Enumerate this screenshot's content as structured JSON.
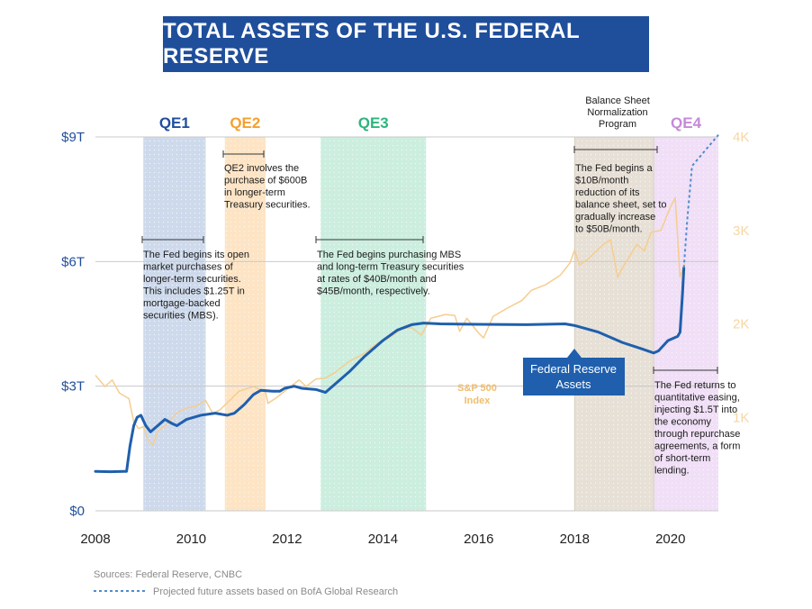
{
  "title": "TOTAL ASSETS OF THE U.S. FEDERAL RESERVE",
  "chart_data": {
    "type": "line",
    "xlim": [
      2008,
      2021
    ],
    "y_left_lim": [
      0,
      9
    ],
    "y_right_lim": [
      0,
      4000
    ],
    "x_ticks": [
      {
        "v": 2008,
        "label": "2008"
      },
      {
        "v": 2010,
        "label": "2010"
      },
      {
        "v": 2012,
        "label": "2012"
      },
      {
        "v": 2014,
        "label": "2014"
      },
      {
        "v": 2016,
        "label": "2016"
      },
      {
        "v": 2018,
        "label": "2018"
      },
      {
        "v": 2020,
        "label": "2020"
      }
    ],
    "y_left_ticks": [
      {
        "v": 0,
        "label": "$0"
      },
      {
        "v": 3,
        "label": "$3T"
      },
      {
        "v": 6,
        "label": "$6T"
      },
      {
        "v": 9,
        "label": "$9T"
      }
    ],
    "y_right_ticks": [
      {
        "v": 1000,
        "label": "1K"
      },
      {
        "v": 2000,
        "label": "2K"
      },
      {
        "v": 3000,
        "label": "3K"
      },
      {
        "v": 4000,
        "label": "4K"
      }
    ],
    "grid": "horizontal",
    "bands": [
      {
        "label": "QE1",
        "start": 2009.0,
        "end": 2010.3,
        "color": "#c9d6ea",
        "text_color": "#1f4e9b"
      },
      {
        "label": "QE2",
        "start": 2010.7,
        "end": 2011.55,
        "color": "#fde1bf",
        "text_color": "#f5a030"
      },
      {
        "label": "QE3",
        "start": 2012.7,
        "end": 2014.9,
        "color": "#c7ecdc",
        "text_color": "#2cb57e"
      },
      {
        "label": "",
        "start": 2018.0,
        "end": 2019.65,
        "color": "#e4ddd2",
        "text_color": "#9b8e7e"
      },
      {
        "label": "QE4",
        "start": 2019.65,
        "end": 2021.0,
        "color": "#eedcf5",
        "text_color": "#c48ad8"
      }
    ],
    "series": [
      {
        "name": "Federal Reserve Assets",
        "axis": "left",
        "color": "#1f5fad",
        "points": [
          [
            2008.0,
            0.95
          ],
          [
            2008.3,
            0.94
          ],
          [
            2008.6,
            0.95
          ],
          [
            2008.65,
            0.95
          ],
          [
            2008.72,
            1.55
          ],
          [
            2008.8,
            2.05
          ],
          [
            2008.87,
            2.25
          ],
          [
            2008.95,
            2.3
          ],
          [
            2009.05,
            2.05
          ],
          [
            2009.15,
            1.9
          ],
          [
            2009.3,
            2.05
          ],
          [
            2009.45,
            2.2
          ],
          [
            2009.6,
            2.1
          ],
          [
            2009.7,
            2.05
          ],
          [
            2009.9,
            2.2
          ],
          [
            2010.2,
            2.3
          ],
          [
            2010.5,
            2.35
          ],
          [
            2010.75,
            2.3
          ],
          [
            2010.9,
            2.35
          ],
          [
            2011.1,
            2.55
          ],
          [
            2011.3,
            2.8
          ],
          [
            2011.45,
            2.9
          ],
          [
            2011.7,
            2.88
          ],
          [
            2011.85,
            2.88
          ],
          [
            2011.95,
            2.95
          ],
          [
            2012.15,
            3.0
          ],
          [
            2012.3,
            2.95
          ],
          [
            2012.6,
            2.92
          ],
          [
            2012.8,
            2.85
          ],
          [
            2013.0,
            3.05
          ],
          [
            2013.3,
            3.35
          ],
          [
            2013.6,
            3.7
          ],
          [
            2014.0,
            4.1
          ],
          [
            2014.3,
            4.35
          ],
          [
            2014.6,
            4.48
          ],
          [
            2014.85,
            4.52
          ],
          [
            2015.2,
            4.5
          ],
          [
            2016.0,
            4.49
          ],
          [
            2017.0,
            4.48
          ],
          [
            2017.8,
            4.5
          ],
          [
            2018.0,
            4.46
          ],
          [
            2018.5,
            4.3
          ],
          [
            2019.0,
            4.05
          ],
          [
            2019.4,
            3.9
          ],
          [
            2019.65,
            3.8
          ],
          [
            2019.75,
            3.85
          ],
          [
            2019.95,
            4.1
          ],
          [
            2020.15,
            4.2
          ],
          [
            2020.2,
            4.3
          ],
          [
            2020.25,
            5.2
          ],
          [
            2020.28,
            5.85
          ]
        ]
      },
      {
        "name": "S&P 500 Index",
        "axis": "right",
        "color": "#f6cd8f",
        "points": [
          [
            2008.0,
            1450
          ],
          [
            2008.2,
            1330
          ],
          [
            2008.35,
            1400
          ],
          [
            2008.5,
            1260
          ],
          [
            2008.7,
            1200
          ],
          [
            2008.8,
            950
          ],
          [
            2008.9,
            880
          ],
          [
            2009.0,
            900
          ],
          [
            2009.1,
            760
          ],
          [
            2009.2,
            700
          ],
          [
            2009.3,
            850
          ],
          [
            2009.5,
            930
          ],
          [
            2009.7,
            1050
          ],
          [
            2009.9,
            1100
          ],
          [
            2010.1,
            1120
          ],
          [
            2010.3,
            1180
          ],
          [
            2010.45,
            1040
          ],
          [
            2010.6,
            1080
          ],
          [
            2010.8,
            1180
          ],
          [
            2011.0,
            1280
          ],
          [
            2011.3,
            1330
          ],
          [
            2011.55,
            1270
          ],
          [
            2011.6,
            1150
          ],
          [
            2011.75,
            1200
          ],
          [
            2012.0,
            1300
          ],
          [
            2012.25,
            1400
          ],
          [
            2012.4,
            1330
          ],
          [
            2012.6,
            1410
          ],
          [
            2012.8,
            1420
          ],
          [
            2013.0,
            1480
          ],
          [
            2013.3,
            1600
          ],
          [
            2013.6,
            1680
          ],
          [
            2013.9,
            1800
          ],
          [
            2014.1,
            1840
          ],
          [
            2014.4,
            1950
          ],
          [
            2014.6,
            1960
          ],
          [
            2014.8,
            1880
          ],
          [
            2015.0,
            2060
          ],
          [
            2015.3,
            2100
          ],
          [
            2015.5,
            2090
          ],
          [
            2015.6,
            1920
          ],
          [
            2015.75,
            2060
          ],
          [
            2016.0,
            1900
          ],
          [
            2016.1,
            1850
          ],
          [
            2016.3,
            2080
          ],
          [
            2016.6,
            2170
          ],
          [
            2016.9,
            2250
          ],
          [
            2017.1,
            2360
          ],
          [
            2017.4,
            2420
          ],
          [
            2017.7,
            2520
          ],
          [
            2017.9,
            2650
          ],
          [
            2018.0,
            2790
          ],
          [
            2018.1,
            2630
          ],
          [
            2018.3,
            2700
          ],
          [
            2018.6,
            2850
          ],
          [
            2018.75,
            2900
          ],
          [
            2018.9,
            2500
          ],
          [
            2019.0,
            2600
          ],
          [
            2019.3,
            2850
          ],
          [
            2019.45,
            2780
          ],
          [
            2019.6,
            2980
          ],
          [
            2019.8,
            3000
          ],
          [
            2020.0,
            3250
          ],
          [
            2020.1,
            3350
          ],
          [
            2020.2,
            2500
          ],
          [
            2020.3,
            2650
          ]
        ]
      }
    ],
    "projection": {
      "color": "#4f8ccf",
      "points": [
        [
          2020.28,
          5.85
        ],
        [
          2020.35,
          7.0
        ],
        [
          2020.45,
          8.3
        ],
        [
          2021.0,
          9.05
        ]
      ]
    },
    "annotations": {
      "qe1": [
        "The Fed begins its open",
        "market purchases of",
        "longer-term securities.",
        "This includes $1.25T in",
        "mortgage-backed",
        "securities (MBS)."
      ],
      "qe2": [
        "QE2 involves the",
        "purchase of $600B",
        "in longer-term",
        "Treasury securities."
      ],
      "qe3": [
        "The Fed begins purchasing MBS",
        "and long-term Treasury securities",
        "at rates of $40B/month and",
        "$45B/month, respectively."
      ],
      "norm_heading": [
        "Balance Sheet",
        "Normalization",
        "Program"
      ],
      "norm": [
        "The Fed begins a",
        "$10B/month",
        "reduction of its",
        "balance sheet, set to",
        "gradually increase",
        "to $50B/month."
      ],
      "qe4": [
        "The Fed returns to",
        "quantitative easing,",
        "injecting $1.5T into",
        "the economy",
        "through repurchase",
        "agreements, a form",
        "of short-term",
        "lending."
      ]
    },
    "series_labels": {
      "fed": [
        "Federal Reserve",
        "Assets"
      ],
      "sp": [
        "S&P 500",
        "Index"
      ]
    }
  },
  "footer": {
    "sources": "Sources: Federal Reserve, CNBC",
    "projection_legend": "Projected future assets based on BofA Global Research"
  }
}
